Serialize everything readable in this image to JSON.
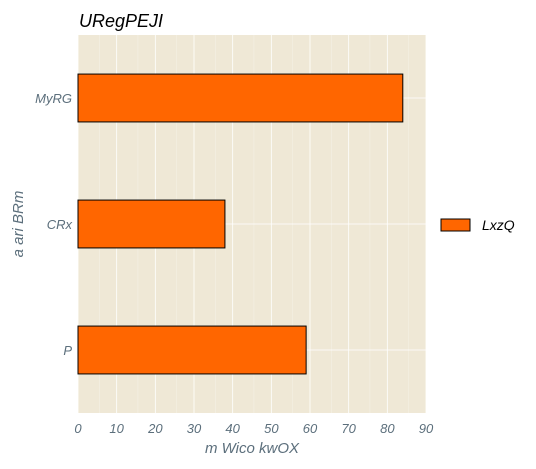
{
  "chart_data": {
    "type": "bar",
    "orientation": "horizontal",
    "title": "URegPEJI",
    "xlabel": "m Wico kwOX",
    "ylabel": "a ari BRm",
    "categories": [
      "MyRG",
      "CRx",
      "P"
    ],
    "series": [
      {
        "name": "LxzQ",
        "values": [
          84,
          38,
          59
        ],
        "color": "#ff6600"
      }
    ],
    "xlim": [
      0,
      90
    ],
    "xticks": [
      "0",
      "10",
      "20",
      "30",
      "40",
      "50",
      "60",
      "70",
      "80",
      "90"
    ],
    "grid": true,
    "legend_position": "right",
    "plot_background": "#efe8d6"
  }
}
